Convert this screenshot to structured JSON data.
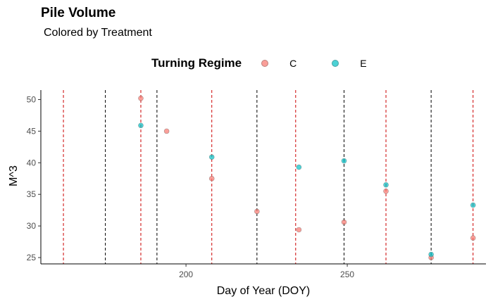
{
  "chart_data": {
    "type": "scatter",
    "title": "Pile Volume",
    "subtitle": "Colored by Treatment",
    "xlabel": "Day of Year (DOY)",
    "ylabel": "M^3",
    "xlim": [
      155,
      293
    ],
    "ylim": [
      24,
      51.5
    ],
    "x_ticks": [
      200,
      250
    ],
    "y_ticks": [
      25,
      30,
      35,
      40,
      45,
      50
    ],
    "grid": false,
    "legend": {
      "title": "Turning Regime",
      "placement": "top",
      "entries": [
        {
          "label": "C",
          "color": "#F8766D"
        },
        {
          "label": "E",
          "color": "#00BFC4"
        }
      ]
    },
    "series": [
      {
        "name": "C",
        "color": "#F8766D",
        "points": [
          {
            "x": 186,
            "y": 50.2
          },
          {
            "x": 194,
            "y": 45.0
          },
          {
            "x": 208,
            "y": 37.5
          },
          {
            "x": 222,
            "y": 32.3
          },
          {
            "x": 235,
            "y": 29.4
          },
          {
            "x": 249,
            "y": 30.6
          },
          {
            "x": 262,
            "y": 35.5
          },
          {
            "x": 276,
            "y": 25.0
          },
          {
            "x": 289,
            "y": 28.1
          }
        ]
      },
      {
        "name": "E",
        "color": "#00BFC4",
        "points": [
          {
            "x": 186,
            "y": 45.9
          },
          {
            "x": 208,
            "y": 40.9
          },
          {
            "x": 235,
            "y": 39.3
          },
          {
            "x": 249,
            "y": 40.3
          },
          {
            "x": 262,
            "y": 36.5
          },
          {
            "x": 276,
            "y": 25.5
          },
          {
            "x": 289,
            "y": 33.3
          }
        ]
      }
    ],
    "vlines": [
      {
        "x": 162,
        "color": "#CC0000"
      },
      {
        "x": 175,
        "color": "#000000"
      },
      {
        "x": 186,
        "color": "#CC0000"
      },
      {
        "x": 191,
        "color": "#000000"
      },
      {
        "x": 208,
        "color": "#CC0000"
      },
      {
        "x": 222,
        "color": "#000000"
      },
      {
        "x": 234,
        "color": "#CC0000"
      },
      {
        "x": 249,
        "color": "#000000"
      },
      {
        "x": 262,
        "color": "#CC0000"
      },
      {
        "x": 276,
        "color": "#000000"
      },
      {
        "x": 289,
        "color": "#CC0000"
      }
    ]
  }
}
